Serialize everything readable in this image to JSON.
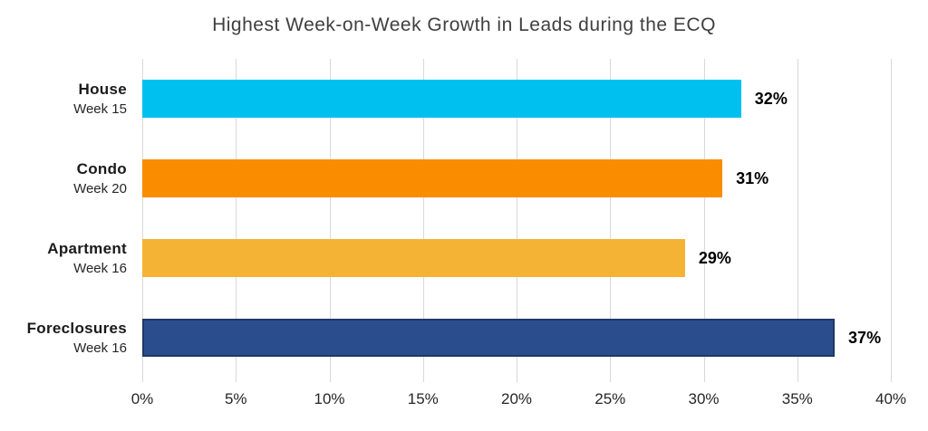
{
  "chart_data": {
    "type": "bar",
    "orientation": "horizontal",
    "title": "Highest Week-on-Week Growth in Leads during the ECQ",
    "categories": [
      "House",
      "Condo",
      "Apartment",
      "Foreclosures"
    ],
    "sublabels": [
      "Week 15",
      "Week 20",
      "Week 16",
      "Week 16"
    ],
    "values": [
      32,
      31,
      29,
      37
    ],
    "value_labels": [
      "32%",
      "31%",
      "29%",
      "37%"
    ],
    "bar_colors": [
      "#00C0F0",
      "#FA8C00",
      "#F5B335",
      "#2A4E8D"
    ],
    "bar_border_colors": [
      null,
      null,
      null,
      "#1F3864"
    ],
    "xlabel": "",
    "ylabel": "",
    "xlim": [
      0,
      40
    ],
    "x_ticks": [
      "0%",
      "5%",
      "10%",
      "15%",
      "20%",
      "25%",
      "30%",
      "35%",
      "40%"
    ],
    "x_tick_values": [
      0,
      5,
      10,
      15,
      20,
      25,
      30,
      35,
      40
    ],
    "grid": "vertical",
    "gridline_color": "#D9D9D9",
    "legend": "none"
  }
}
